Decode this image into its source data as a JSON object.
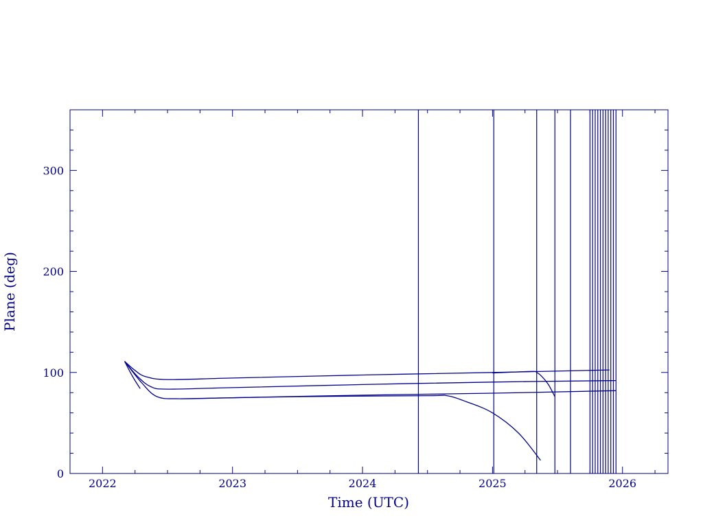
{
  "chart_data": {
    "type": "line",
    "title": "",
    "xlabel": "Time (UTC)",
    "ylabel": "Plane (deg)",
    "xlim": [
      2021.75,
      2026.35
    ],
    "ylim": [
      0,
      360
    ],
    "x_ticks": [
      2022,
      2023,
      2024,
      2025,
      2026
    ],
    "x_tick_labels": [
      "2022",
      "2023",
      "2024",
      "2025",
      "2026"
    ],
    "y_ticks": [
      0,
      100,
      200,
      300
    ],
    "y_tick_labels": [
      "0",
      "100",
      "200",
      "300"
    ],
    "grid": false,
    "legend": "none",
    "color": "#00008b",
    "series": [
      {
        "x": [
          2022.17,
          2022.25,
          2022.33,
          2022.5,
          2023.0,
          2024.0,
          2025.0,
          2025.9
        ],
        "y": [
          111,
          102,
          96,
          93,
          94.5,
          97.5,
          100,
          102.5
        ]
      },
      {
        "x": [
          2022.17,
          2022.27,
          2022.37,
          2022.5,
          2023.0,
          2024.0,
          2025.0,
          2025.95
        ],
        "y": [
          111,
          96,
          86,
          83.5,
          85,
          88,
          90.5,
          92
        ]
      },
      {
        "x": [
          2022.17,
          2022.3,
          2022.42,
          2022.6,
          2023.0,
          2024.0,
          2025.0,
          2025.95
        ],
        "y": [
          111,
          90,
          76,
          74,
          75,
          77.5,
          79.5,
          82
        ]
      },
      {
        "x": [
          2022.17,
          2022.21,
          2022.25,
          2022.29
        ],
        "y": [
          111,
          101,
          92,
          84
        ]
      },
      {
        "x": [
          2022.6,
          2023.5,
          2024.5,
          2024.65,
          2024.8,
          2025.0,
          2025.2,
          2025.37
        ],
        "y": [
          74,
          76,
          77,
          77,
          71,
          60,
          40,
          13
        ]
      },
      {
        "x": [
          2025.0,
          2025.3,
          2025.34,
          2025.38,
          2025.43,
          2025.48
        ],
        "y": [
          99.5,
          101,
          100,
          96,
          88,
          76
        ]
      }
    ],
    "event_lines_x": [
      2024.43,
      2025.01,
      2025.34,
      2025.48,
      2025.6,
      2025.75,
      2025.77,
      2025.79,
      2025.81,
      2025.83,
      2025.85,
      2025.87,
      2025.89,
      2025.91,
      2025.93,
      2025.95
    ]
  }
}
